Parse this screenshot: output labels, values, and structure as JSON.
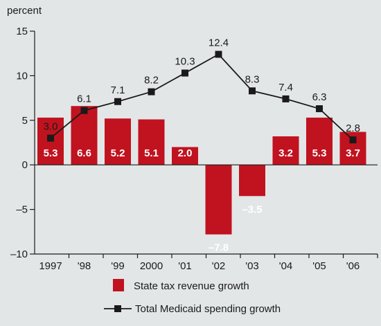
{
  "chart_data": {
    "type": "bar",
    "unit_label": "percent",
    "categories": [
      "1997",
      "'98",
      "'99",
      "2000",
      "'01",
      "'02",
      "'03",
      "'04",
      "'05",
      "'06"
    ],
    "series": [
      {
        "name": "State tax revenue growth",
        "type": "bar",
        "values": [
          5.3,
          6.6,
          5.2,
          5.1,
          2.0,
          -7.8,
          -3.5,
          3.2,
          5.3,
          3.7
        ],
        "labels": [
          "5.3",
          "6.6",
          "5.2",
          "5.1",
          "2.0",
          "–7.8",
          "–3.5",
          "3.2",
          "5.3",
          "3.7"
        ]
      },
      {
        "name": "Total Medicaid spending growth",
        "type": "line",
        "values": [
          3.0,
          6.1,
          7.1,
          8.2,
          10.3,
          12.4,
          8.3,
          7.4,
          6.3,
          2.8
        ],
        "labels": [
          "3.0",
          "6.1",
          "7.1",
          "8.2",
          "10.3",
          "12.4",
          "8.3",
          "7.4",
          "6.3",
          "2.8"
        ]
      }
    ],
    "y_ticks": [
      15,
      10,
      5,
      0,
      -5,
      -10
    ],
    "y_tick_labels": [
      "15",
      "10",
      "5",
      "0",
      "–5",
      "–10"
    ],
    "ylim": [
      -10,
      15
    ],
    "grid": false,
    "legend_position": "bottom-center",
    "colors": {
      "bar": "#c0131f",
      "line": "#1a1a1a",
      "background": "#e3e6e7"
    }
  }
}
